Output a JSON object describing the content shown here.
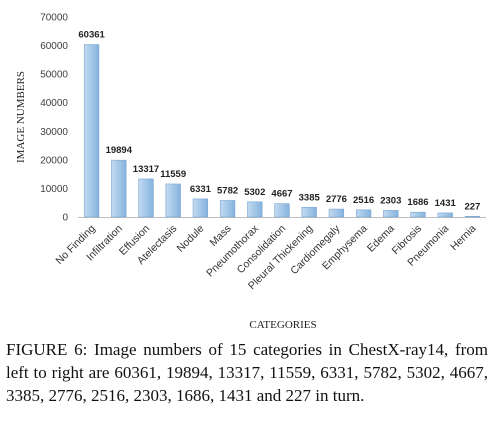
{
  "chart_data": {
    "type": "bar",
    "categories": [
      "No Finding",
      "Infiltration",
      "Effusion",
      "Atelectasis",
      "Nodule",
      "Mass",
      "Pneumothorax",
      "Consolidation",
      "Pleural Thickening",
      "Cardiomegaly",
      "Emphysema",
      "Edema",
      "Fibrosis",
      "Pneumonia",
      "Hernia"
    ],
    "values": [
      60361,
      19894,
      13317,
      11559,
      6331,
      5782,
      5302,
      4667,
      3385,
      2776,
      2516,
      2303,
      1686,
      1431,
      227
    ],
    "ylabel": "IMAGE NUMBERS",
    "xlabel": "CATEGORIES",
    "ylim": [
      0,
      70000
    ],
    "yticks": [
      "0",
      "10000",
      "20000",
      "30000",
      "40000",
      "50000",
      "60000",
      "70000"
    ],
    "grid": false,
    "bar_color": "#9dc3e6",
    "bar_edge_color": "#7aa6d2"
  },
  "caption": "FIGURE 6: Image numbers of 15 categories in ChestX-ray14, from left to right are 60361, 19894, 13317, 11559, 6331, 5782, 5302, 4667, 3385, 2776, 2516, 2303, 1686, 1431 and 227 in turn."
}
